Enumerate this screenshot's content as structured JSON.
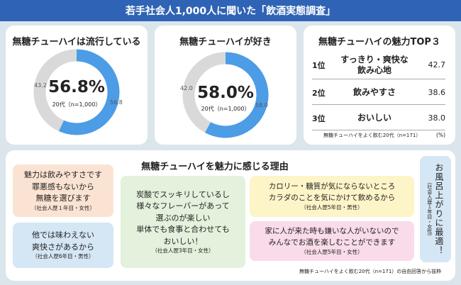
{
  "header": {
    "title": "若手社会人1,000人に聞いた「飲酒実態調査」"
  },
  "colors": {
    "accent": "#2f63b5",
    "donut_main": "#4c9ce6",
    "donut_rest": "#d9d9d9"
  },
  "chart_data": [
    {
      "type": "pie",
      "title": "無糖チューハイは流行している",
      "big_label": "56.8%",
      "sample": "20代（n=1,000）",
      "values": [
        56.8,
        43.2
      ],
      "labels": [
        "56.8",
        "43.2"
      ]
    },
    {
      "type": "pie",
      "title": "無糖チューハイが好き",
      "big_label": "58.0%",
      "sample": "20代（n=1,000）",
      "values": [
        58.0,
        42.0
      ],
      "labels": [
        "58.0",
        "42.0"
      ]
    },
    {
      "type": "table",
      "title": "無糖チューハイの魅力TOP３",
      "rows": [
        {
          "rank": "1位",
          "label_line1": "すっきり・爽快な",
          "label_line2": "飲み心地",
          "value": "42.7"
        },
        {
          "rank": "2位",
          "label_line1": "飲みやすさ",
          "label_line2": "",
          "value": "38.6"
        },
        {
          "rank": "3位",
          "label_line1": "おいしい",
          "label_line2": "",
          "value": "38.0"
        }
      ],
      "note": "無糖チューハイをよく飲む20代（n=171）",
      "unit": "(%)"
    }
  ],
  "reasons": {
    "title": "無糖チューハイを魅力に感じる理由",
    "r1": {
      "lines": [
        "魅力は飲みやすさです",
        "罪悪感もないから",
        "無糖を選びます"
      ],
      "att": "（社会人歴１年目・女性）"
    },
    "r2": {
      "lines": [
        "他では味わえない",
        "爽快さがあるから"
      ],
      "att": "（社会人歴6年目・男性）"
    },
    "r3": {
      "lines": [
        "炭酸でスッキリしているし",
        "様々なフレーバーがあって",
        "選ぶのが楽しい",
        "単体でも食事と合わせても",
        "おいしい！"
      ],
      "att": "（社会人歴3年目・女性）"
    },
    "r4": {
      "lines": [
        "カロリー・糖質が気にならないところ",
        "カラダのことを気にかけて飲めるから"
      ],
      "att": "（社会人歴5年目・男性）"
    },
    "r5": {
      "lines": [
        "家に人が来た時も嫌いな人がいないので",
        "みんなでお酒を楽しむことができます"
      ],
      "att": "（社会人歴5年目・女性）"
    },
    "r6": {
      "text": "お風呂上がりに最適！",
      "att": "（社会人歴１年目・女性）"
    },
    "footnote": "無糖チューハイをよく飲む20代（n=171）の自由回答から抜粋"
  }
}
